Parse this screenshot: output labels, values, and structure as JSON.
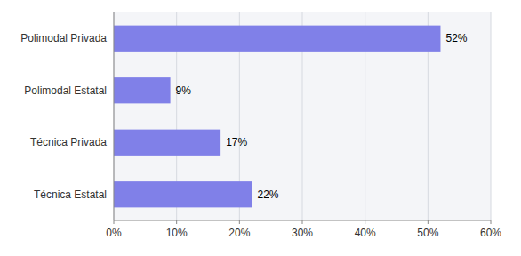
{
  "chart_data": {
    "type": "bar",
    "orientation": "horizontal",
    "categories": [
      "Técnica Estatal",
      "Técnica Privada",
      "Polimodal Estatal",
      "Polimodal Privada"
    ],
    "values": [
      22,
      17,
      9,
      52
    ],
    "value_labels": [
      "22%",
      "17%",
      "9%",
      "52%"
    ],
    "data_labels": true,
    "color": "#8080e8",
    "xlim": [
      0,
      60
    ],
    "xticks": [
      {
        "value": 0,
        "label": "0%"
      },
      {
        "value": 10,
        "label": "10%"
      },
      {
        "value": 20,
        "label": "20%"
      },
      {
        "value": 30,
        "label": "30%"
      },
      {
        "value": 40,
        "label": "40%"
      },
      {
        "value": 50,
        "label": "50%"
      },
      {
        "value": 60,
        "label": "60%"
      }
    ],
    "grid": true
  }
}
